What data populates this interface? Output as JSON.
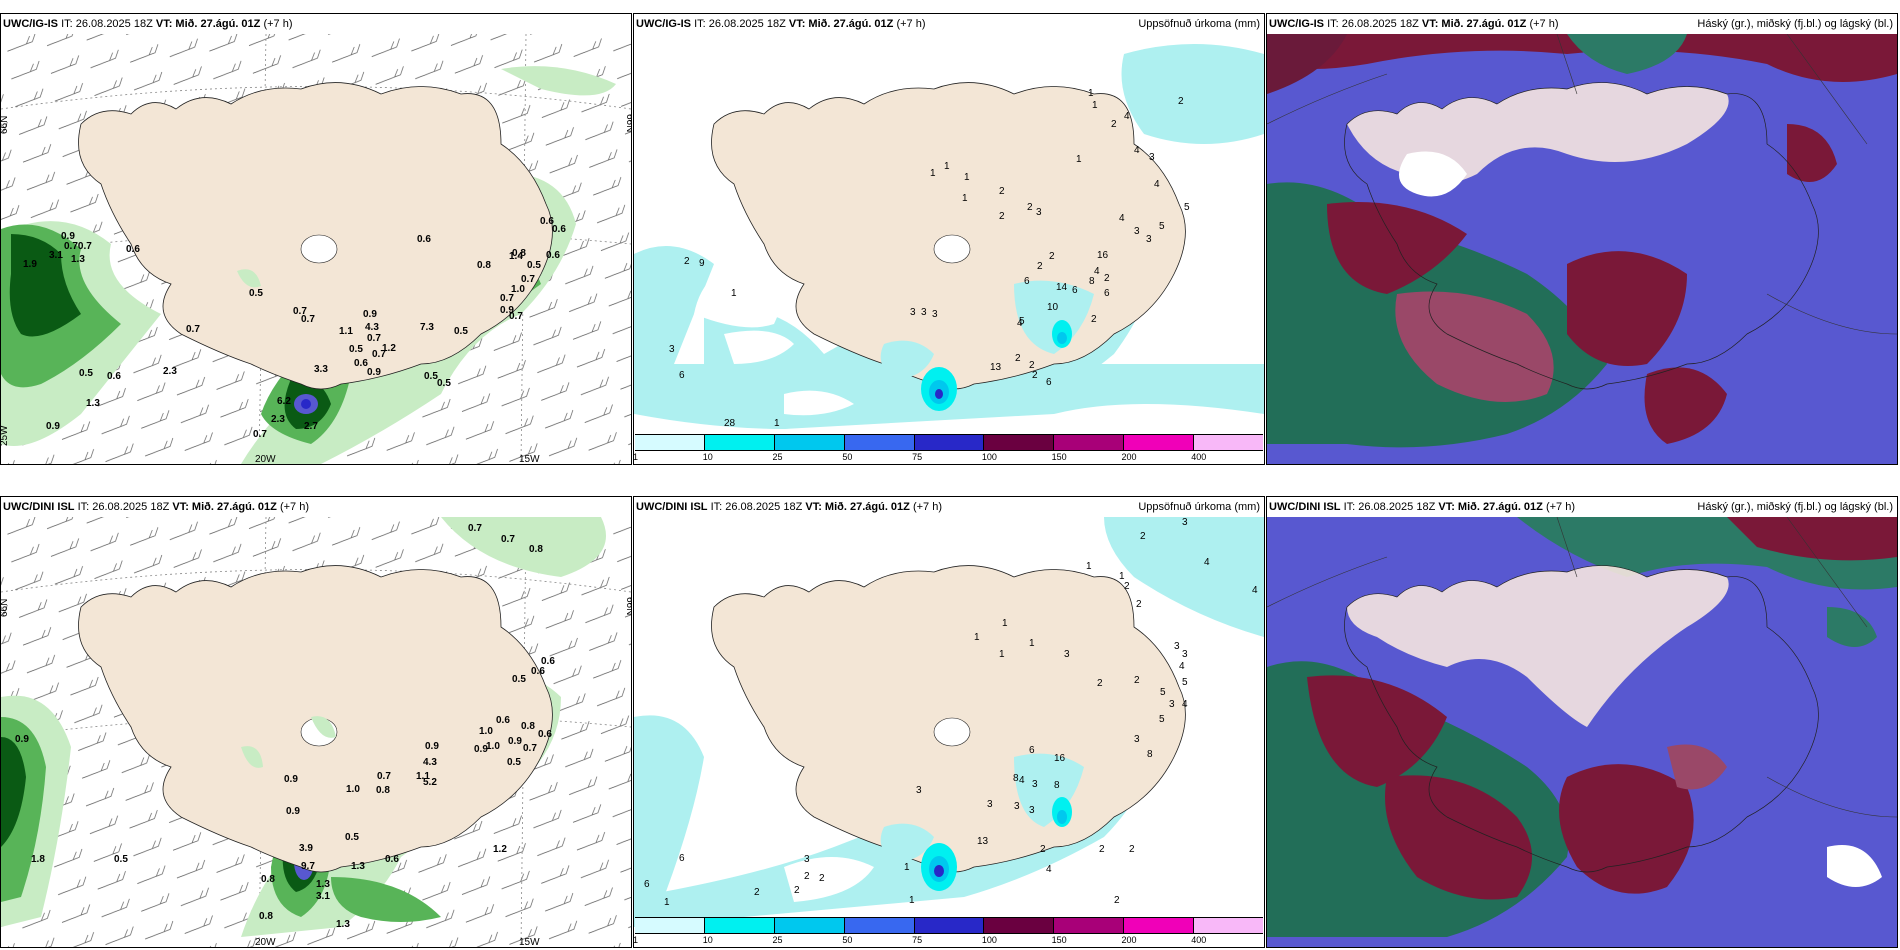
{
  "panels": {
    "p1": {
      "model": "UWC/IG-IS",
      "it": "IT: 26.08.2025 18Z",
      "vt": "VT: Mið. 27.ágú. 01Z",
      "offset": "(+7 h)",
      "title_right": ""
    },
    "p2": {
      "model": "UWC/IG-IS",
      "it": "IT: 26.08.2025 18Z",
      "vt": "VT: Mið. 27.ágú. 01Z",
      "offset": "(+7 h)",
      "title_right": "Uppsöfnuð úrkoma (mm)"
    },
    "p3": {
      "model": "UWC/IG-IS",
      "it": "IT: 26.08.2025 18Z",
      "vt": "VT: Mið. 27.ágú. 01Z",
      "offset": "(+7 h)",
      "title_right": "Háský (gr.), miðský (fj.bl.) og lágský (bl.)"
    },
    "p4": {
      "model": "UWC/DINI ISL",
      "it": "IT: 26.08.2025 18Z",
      "vt": "VT: Mið. 27.ágú. 01Z",
      "offset": "(+7 h)",
      "title_right": ""
    },
    "p5": {
      "model": "UWC/DINI ISL",
      "it": "IT: 26.08.2025 18Z",
      "vt": "VT: Mið. 27.ágú. 01Z",
      "offset": "(+7 h)",
      "title_right": "Uppsöfnuð úrkoma (mm)"
    },
    "p6": {
      "model": "UWC/DINI ISL",
      "it": "IT: 26.08.2025 18Z",
      "vt": "VT: Mið. 27.ágú. 01Z",
      "offset": "(+7 h)",
      "title_right": "Háský (gr.), miðský (fj.bl.) og lágský (bl.)"
    }
  },
  "axis_labels": {
    "lat66": "66N",
    "lon25": "25W",
    "lon20": "20W",
    "lon15": "15W"
  },
  "colorbar": {
    "ticks": [
      "1",
      "10",
      "25",
      "50",
      "75",
      "100",
      "150",
      "200",
      "400"
    ],
    "colors": [
      "#d6fbff",
      "#00f0f0",
      "#00c8ee",
      "#3868f0",
      "#2828c8",
      "#6a0040",
      "#a80078",
      "#f000b8",
      "#f8b8f8"
    ]
  },
  "colors": {
    "land": "#f3e6d6",
    "sea": "#ffffff",
    "precip_light": "#aef0f0",
    "green_light": "#c8ecc4",
    "green_mid": "#58b458",
    "green_dark": "#0a5a14",
    "cloud_high": "#226e58",
    "cloud_mid": "#7a1838",
    "cloud_low": "#5858d0"
  },
  "labels": {
    "p1": [
      "0.9",
      "0.70.7",
      "1.3",
      "1.9",
      "3.1",
      "0.6",
      "0.5",
      "0.6",
      "0.6",
      "0.7",
      "0.9",
      "1.3",
      "0.7",
      "0.5",
      "0.5",
      "0.7",
      "3.3",
      "0.6",
      "1.1",
      "0.5",
      "0.7",
      "1.2",
      "2.3",
      "0.9",
      "0.7",
      "7.3",
      "4.3",
      "0.5",
      "0.5",
      "0.8",
      "1.4",
      "0.7",
      "0.9",
      "1.0",
      "0.7",
      "0.6",
      "0.6",
      "0.8",
      "0.5",
      "0.6",
      "0.7",
      "2.7",
      "2.3",
      "0.7",
      "6.2",
      "0.9"
    ],
    "p2": [
      "1",
      "1",
      "1",
      "1",
      "1",
      "2",
      "2",
      "1",
      "2",
      "1",
      "2",
      "2",
      "3",
      "2",
      "4",
      "3",
      "4",
      "5",
      "3",
      "4",
      "2",
      "4",
      "9",
      "1",
      "3",
      "6",
      "5",
      "2",
      "3",
      "3",
      "3",
      "3",
      "10",
      "6",
      "4",
      "13",
      "2",
      "2",
      "6",
      "28",
      "5",
      "14",
      "4",
      "8",
      "2",
      "1",
      "16",
      "6",
      "2",
      "6",
      "2"
    ],
    "p4": [
      "0.7",
      "0.7",
      "0.8",
      "0.6",
      "0.5",
      "0.6",
      "0.9",
      "0.9",
      "1.0",
      "0.8",
      "0.9",
      "0.5",
      "0.7",
      "0.9",
      "0.6",
      "0.9",
      "1.1",
      "1.0",
      "0.5",
      "0.6",
      "3.9",
      "1.3",
      "4.3",
      "0.8",
      "5.2",
      "0.7",
      "1.2",
      "1.0",
      "1.3",
      "0.8",
      "0.5",
      "0.9",
      "1.8",
      "3.1",
      "1.3",
      "0.8",
      "9.7",
      "0.6"
    ],
    "p5": [
      "3",
      "4",
      "4",
      "1",
      "1",
      "2",
      "2",
      "1",
      "1",
      "1",
      "2",
      "3",
      "3",
      "3",
      "4",
      "5",
      "5",
      "2",
      "2",
      "1",
      "8",
      "3",
      "4",
      "5",
      "3",
      "13",
      "8",
      "3",
      "4",
      "3",
      "3",
      "3",
      "6",
      "2",
      "1",
      "2",
      "2",
      "3",
      "2",
      "2",
      "4",
      "6",
      "3",
      "16",
      "2",
      "2",
      "1",
      "1",
      "2",
      "8",
      "6"
    ]
  }
}
